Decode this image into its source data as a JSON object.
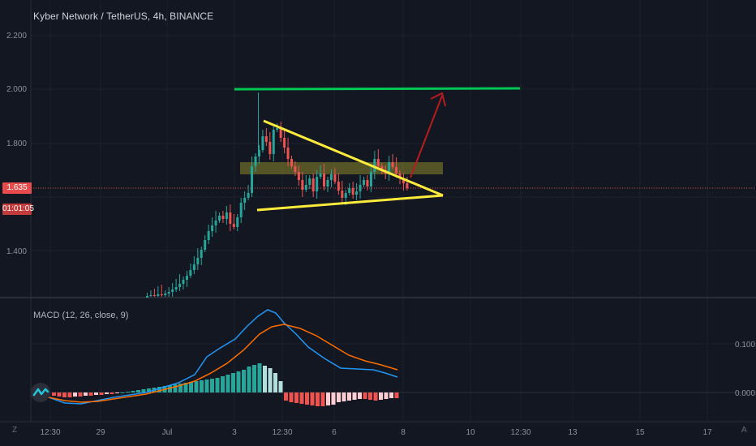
{
  "header": {
    "title": "Kyber Network / TetherUS, 4h, BINANCE"
  },
  "price_axis": {
    "labels": [
      "2.200",
      "2.000",
      "1.800",
      "1.400"
    ],
    "current_price": "1.635",
    "countdown": "01:01:05"
  },
  "macd": {
    "title": "MACD (12, 26, close, 9)",
    "axis_labels": [
      "0.100",
      "0.000"
    ]
  },
  "time_axis": {
    "labels": [
      "12:30",
      "29",
      "Jul",
      "3",
      "12:30",
      "6",
      "8",
      "10",
      "12:30",
      "13",
      "15",
      "17"
    ]
  },
  "corner": {
    "left_symbol": "Z",
    "right_symbol": "A"
  },
  "colors": {
    "background": "#131722",
    "up": "#26a69a",
    "down": "#ef5350",
    "resistance_line": "#00c853",
    "triangle": "#ffeb3b",
    "arrow": "#b71c1c",
    "zone": "#6b6a2a",
    "macd_line": "#2196f3",
    "signal_line": "#ff6d00"
  },
  "icons": {
    "logo": "tradingview-logo-icon"
  }
}
